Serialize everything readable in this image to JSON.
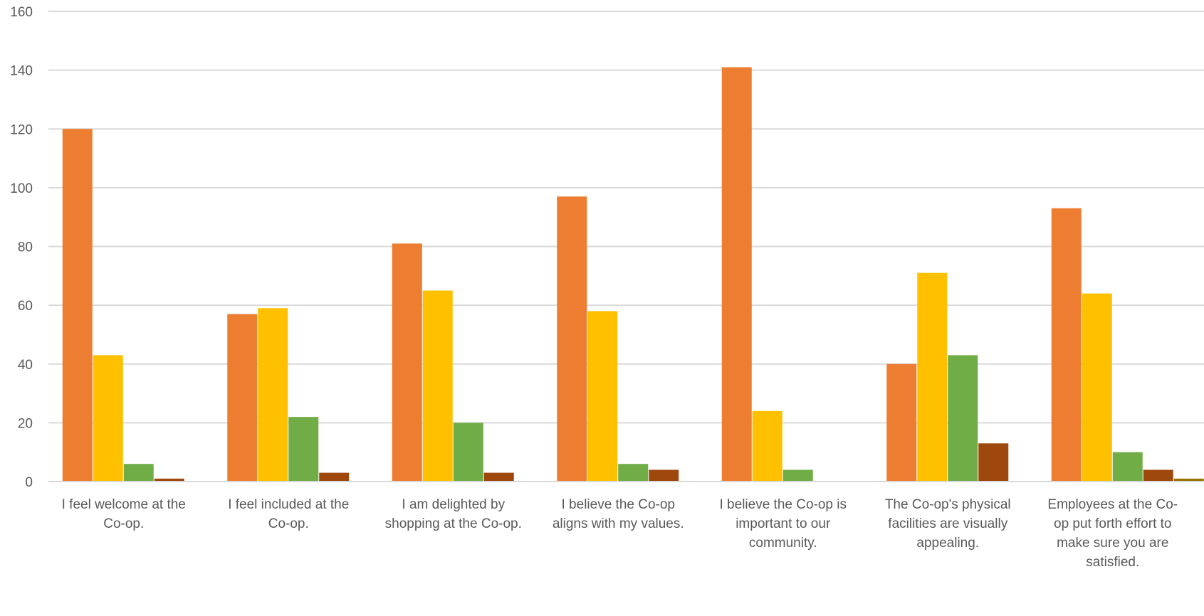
{
  "chart_data": {
    "type": "bar",
    "title": "",
    "xlabel": "",
    "ylabel": "",
    "ylim": [
      0,
      160
    ],
    "yticks": [
      0,
      20,
      40,
      60,
      80,
      100,
      120,
      140,
      160
    ],
    "grid": true,
    "legend": "none",
    "categories": [
      [
        "I feel welcome at the",
        "Co-op."
      ],
      [
        "I feel included at the",
        "Co-op."
      ],
      [
        "I am delighted by",
        "shopping at the Co-op."
      ],
      [
        "I believe the Co-op",
        "aligns with my values."
      ],
      [
        "I believe the Co-op is",
        "important to our",
        "community."
      ],
      [
        "The Co-op's physical",
        "facilities are visually",
        "appealing."
      ],
      [
        "Employees at the Co-",
        "op put forth effort to",
        "make sure you are",
        "satisfied."
      ]
    ],
    "series": [
      {
        "color": "#ED7D31",
        "values": [
          120,
          57,
          81,
          97,
          141,
          40,
          93
        ]
      },
      {
        "color": "#FFC000",
        "values": [
          43,
          59,
          65,
          58,
          24,
          71,
          64
        ]
      },
      {
        "color": "#70AD47",
        "values": [
          6,
          22,
          20,
          6,
          4,
          43,
          10
        ]
      },
      {
        "color": "#9E480E",
        "values": [
          1,
          3,
          3,
          4,
          0,
          13,
          4
        ]
      },
      {
        "color": "#997300",
        "values": [
          0,
          0,
          0,
          0,
          0,
          0,
          1
        ]
      }
    ]
  }
}
